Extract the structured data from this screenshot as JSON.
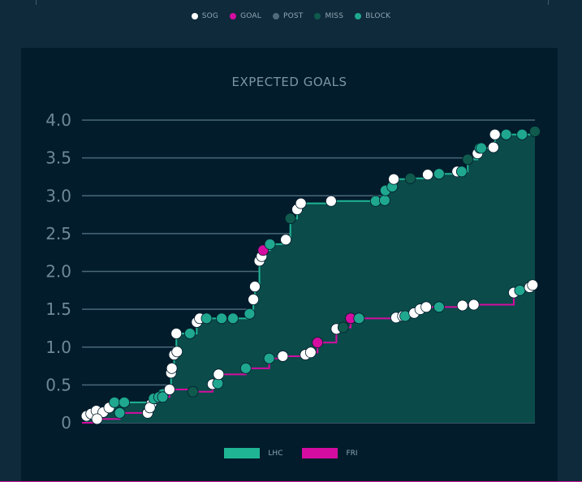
{
  "event_legend": [
    {
      "label": "SOG",
      "color": "#ffffff"
    },
    {
      "label": "GOAL",
      "color": "#d40da0"
    },
    {
      "label": "POST",
      "color": "#4f6c7e"
    },
    {
      "label": "MISS",
      "color": "#0f5a4c"
    },
    {
      "label": "BLOCK",
      "color": "#1fa88f"
    }
  ],
  "chart_data": {
    "type": "line",
    "title": "EXPECTED GOALS",
    "xlabel": "",
    "ylabel": "",
    "ylim": [
      0,
      4.0
    ],
    "yticks": [
      0,
      0.5,
      1.0,
      1.5,
      2.0,
      2.5,
      3.0,
      3.5,
      4.0
    ],
    "ytick_labels": [
      "0",
      "0.5",
      "1.0",
      "1.5",
      "2.0",
      "2.5",
      "3.0",
      "3.5",
      "4.0"
    ],
    "xlim": [
      0,
      60
    ],
    "series": [
      {
        "name": "LHC",
        "line_color": "#1fb594",
        "fill_color": "#0b4b4a",
        "shots": [
          {
            "x": 0.6,
            "y": 0.09,
            "type": "SOG"
          },
          {
            "x": 1.2,
            "y": 0.12,
            "type": "SOG"
          },
          {
            "x": 1.9,
            "y": 0.16,
            "type": "SOG"
          },
          {
            "x": 2.8,
            "y": 0.14,
            "type": "SOG"
          },
          {
            "x": 3.6,
            "y": 0.2,
            "type": "SOG"
          },
          {
            "x": 4.3,
            "y": 0.27,
            "type": "BLOCK"
          },
          {
            "x": 5.6,
            "y": 0.27,
            "type": "BLOCK"
          },
          {
            "x": 8.7,
            "y": 0.14,
            "type": "SOG"
          },
          {
            "x": 9.2,
            "y": 0.25,
            "type": "SOG"
          },
          {
            "x": 9.7,
            "y": 0.32,
            "type": "SOG"
          },
          {
            "x": 10.7,
            "y": 0.38,
            "type": "BLOCK"
          },
          {
            "x": 11.8,
            "y": 0.66,
            "type": "SOG"
          },
          {
            "x": 11.9,
            "y": 0.72,
            "type": "SOG"
          },
          {
            "x": 12.2,
            "y": 0.9,
            "type": "SOG"
          },
          {
            "x": 12.6,
            "y": 0.94,
            "type": "SOG"
          },
          {
            "x": 12.5,
            "y": 1.18,
            "type": "SOG"
          },
          {
            "x": 14.3,
            "y": 1.18,
            "type": "BLOCK"
          },
          {
            "x": 15.2,
            "y": 1.33,
            "type": "SOG"
          },
          {
            "x": 15.6,
            "y": 1.38,
            "type": "SOG"
          },
          {
            "x": 16.5,
            "y": 1.38,
            "type": "BLOCK"
          },
          {
            "x": 18.5,
            "y": 1.38,
            "type": "BLOCK"
          },
          {
            "x": 20.0,
            "y": 1.38,
            "type": "BLOCK"
          },
          {
            "x": 22.2,
            "y": 1.44,
            "type": "BLOCK"
          },
          {
            "x": 22.7,
            "y": 1.63,
            "type": "SOG"
          },
          {
            "x": 22.9,
            "y": 1.8,
            "type": "SOG"
          },
          {
            "x": 23.5,
            "y": 2.14,
            "type": "SOG"
          },
          {
            "x": 23.8,
            "y": 2.2,
            "type": "SOG"
          },
          {
            "x": 24.0,
            "y": 2.28,
            "type": "GOAL"
          },
          {
            "x": 24.9,
            "y": 2.36,
            "type": "BLOCK"
          },
          {
            "x": 27.0,
            "y": 2.42,
            "type": "SOG"
          },
          {
            "x": 27.6,
            "y": 2.7,
            "type": "MISS"
          },
          {
            "x": 28.5,
            "y": 2.82,
            "type": "SOG"
          },
          {
            "x": 29.0,
            "y": 2.9,
            "type": "SOG"
          },
          {
            "x": 33.0,
            "y": 2.93,
            "type": "SOG"
          },
          {
            "x": 38.9,
            "y": 2.93,
            "type": "BLOCK"
          },
          {
            "x": 40.1,
            "y": 2.94,
            "type": "BLOCK"
          },
          {
            "x": 40.2,
            "y": 3.07,
            "type": "BLOCK"
          },
          {
            "x": 41.1,
            "y": 3.12,
            "type": "BLOCK"
          },
          {
            "x": 41.3,
            "y": 3.22,
            "type": "SOG"
          },
          {
            "x": 43.5,
            "y": 3.23,
            "type": "MISS"
          },
          {
            "x": 45.8,
            "y": 3.28,
            "type": "SOG"
          },
          {
            "x": 47.3,
            "y": 3.29,
            "type": "BLOCK"
          },
          {
            "x": 49.7,
            "y": 3.32,
            "type": "SOG"
          },
          {
            "x": 50.3,
            "y": 3.32,
            "type": "BLOCK"
          },
          {
            "x": 51.1,
            "y": 3.48,
            "type": "MISS"
          },
          {
            "x": 52.4,
            "y": 3.56,
            "type": "SOG"
          },
          {
            "x": 52.7,
            "y": 3.63,
            "type": "BLOCK"
          },
          {
            "x": 52.9,
            "y": 3.63,
            "type": "BLOCK"
          },
          {
            "x": 54.5,
            "y": 3.64,
            "type": "SOG"
          },
          {
            "x": 54.7,
            "y": 3.81,
            "type": "SOG"
          },
          {
            "x": 56.2,
            "y": 3.81,
            "type": "BLOCK"
          },
          {
            "x": 58.3,
            "y": 3.81,
            "type": "BLOCK"
          },
          {
            "x": 60.0,
            "y": 3.85,
            "type": "MISS"
          }
        ]
      },
      {
        "name": "FRI",
        "line_color": "#d40da0",
        "fill_color": "#0b4b4a",
        "shots": [
          {
            "x": 2.0,
            "y": 0.05,
            "type": "SOG"
          },
          {
            "x": 5.0,
            "y": 0.13,
            "type": "BLOCK"
          },
          {
            "x": 8.7,
            "y": 0.13,
            "type": "SOG"
          },
          {
            "x": 9.0,
            "y": 0.2,
            "type": "SOG"
          },
          {
            "x": 9.5,
            "y": 0.32,
            "type": "BLOCK"
          },
          {
            "x": 10.2,
            "y": 0.34,
            "type": "BLOCK"
          },
          {
            "x": 10.7,
            "y": 0.34,
            "type": "BLOCK"
          },
          {
            "x": 11.6,
            "y": 0.44,
            "type": "SOG"
          },
          {
            "x": 14.7,
            "y": 0.41,
            "type": "MISS"
          },
          {
            "x": 17.3,
            "y": 0.51,
            "type": "SOG"
          },
          {
            "x": 18.0,
            "y": 0.52,
            "type": "BLOCK"
          },
          {
            "x": 18.1,
            "y": 0.64,
            "type": "SOG"
          },
          {
            "x": 21.7,
            "y": 0.72,
            "type": "BLOCK"
          },
          {
            "x": 24.8,
            "y": 0.85,
            "type": "BLOCK"
          },
          {
            "x": 26.6,
            "y": 0.88,
            "type": "SOG"
          },
          {
            "x": 29.6,
            "y": 0.9,
            "type": "SOG"
          },
          {
            "x": 30.3,
            "y": 0.93,
            "type": "SOG"
          },
          {
            "x": 31.2,
            "y": 1.06,
            "type": "GOAL"
          },
          {
            "x": 33.7,
            "y": 1.24,
            "type": "SOG"
          },
          {
            "x": 34.6,
            "y": 1.26,
            "type": "MISS"
          },
          {
            "x": 35.6,
            "y": 1.38,
            "type": "GOAL"
          },
          {
            "x": 36.7,
            "y": 1.38,
            "type": "BLOCK"
          },
          {
            "x": 41.6,
            "y": 1.39,
            "type": "SOG"
          },
          {
            "x": 42.5,
            "y": 1.41,
            "type": "SOG"
          },
          {
            "x": 42.8,
            "y": 1.41,
            "type": "BLOCK"
          },
          {
            "x": 44.0,
            "y": 1.45,
            "type": "SOG"
          },
          {
            "x": 44.8,
            "y": 1.5,
            "type": "SOG"
          },
          {
            "x": 45.6,
            "y": 1.53,
            "type": "SOG"
          },
          {
            "x": 47.3,
            "y": 1.53,
            "type": "BLOCK"
          },
          {
            "x": 50.4,
            "y": 1.55,
            "type": "SOG"
          },
          {
            "x": 51.9,
            "y": 1.56,
            "type": "SOG"
          },
          {
            "x": 57.2,
            "y": 1.72,
            "type": "SOG"
          },
          {
            "x": 58.0,
            "y": 1.75,
            "type": "BLOCK"
          },
          {
            "x": 59.3,
            "y": 1.79,
            "type": "SOG"
          },
          {
            "x": 59.7,
            "y": 1.82,
            "type": "SOG"
          }
        ]
      }
    ],
    "legend": [
      {
        "name": "LHC",
        "color": "#1fb594"
      },
      {
        "name": "FRI",
        "color": "#d40da0"
      }
    ],
    "grid": true
  }
}
